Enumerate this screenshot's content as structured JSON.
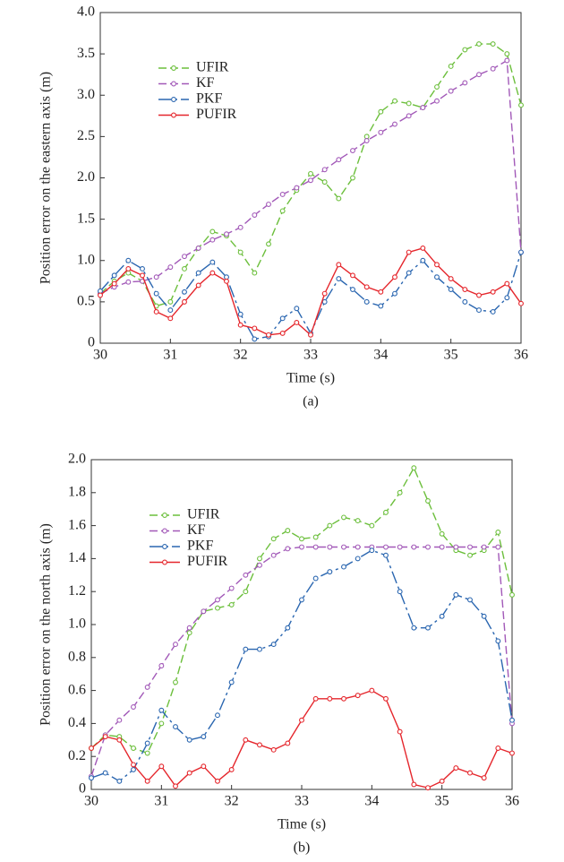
{
  "chart_data": [
    {
      "type": "line",
      "caption": "(a)",
      "xlabel": "Time (s)",
      "ylabel": "Position error on the eastern axis (m)",
      "x": [
        30,
        30.2,
        30.4,
        30.6,
        30.8,
        31,
        31.2,
        31.4,
        31.6,
        31.8,
        32,
        32.2,
        32.4,
        32.6,
        32.8,
        33,
        33.2,
        33.4,
        33.6,
        33.8,
        34,
        34.2,
        34.4,
        34.6,
        34.8,
        35,
        35.2,
        35.4,
        35.6,
        35.8,
        36
      ],
      "xlim": [
        30,
        36
      ],
      "xticks": [
        30,
        31,
        32,
        33,
        34,
        35,
        36
      ],
      "ylim": [
        0,
        4
      ],
      "yticks": [
        0,
        0.5,
        {
          "value": 1,
          "label": "1.0"
        },
        1.5,
        {
          "value": 2,
          "label": "2.0"
        },
        2.5,
        {
          "value": 3,
          "label": "3.0"
        },
        3.5,
        {
          "value": 4,
          "label": "4.0"
        }
      ],
      "legend": "upper left",
      "series": [
        {
          "name": "UFIR",
          "color": "#6cbf3c",
          "dash": "dashed",
          "values": [
            0.6,
            0.75,
            0.85,
            0.75,
            0.45,
            0.5,
            0.9,
            1.15,
            1.35,
            1.3,
            1.1,
            0.85,
            1.2,
            1.6,
            1.85,
            2.05,
            1.95,
            1.75,
            2.0,
            2.5,
            2.8,
            2.93,
            2.9,
            2.85,
            3.1,
            3.35,
            3.55,
            3.62,
            3.62,
            3.5,
            2.88
          ]
        },
        {
          "name": "KF",
          "color": "#a259b8",
          "dash": "dashed",
          "values": [
            0.6,
            0.68,
            0.74,
            0.75,
            0.8,
            0.92,
            1.05,
            1.15,
            1.25,
            1.32,
            1.4,
            1.55,
            1.68,
            1.8,
            1.88,
            1.97,
            2.1,
            2.22,
            2.33,
            2.45,
            2.55,
            2.65,
            2.75,
            2.85,
            2.93,
            3.05,
            3.15,
            3.25,
            3.32,
            3.42,
            1.1
          ]
        },
        {
          "name": "PKF",
          "color": "#2a66b0",
          "dash": "dashdot",
          "values": [
            0.63,
            0.82,
            1.0,
            0.9,
            0.6,
            0.4,
            0.62,
            0.85,
            0.98,
            0.8,
            0.35,
            0.05,
            0.08,
            0.3,
            0.42,
            0.12,
            0.5,
            0.78,
            0.65,
            0.5,
            0.45,
            0.6,
            0.85,
            1.0,
            0.8,
            0.65,
            0.5,
            0.4,
            0.38,
            0.55,
            1.1
          ]
        },
        {
          "name": "PUFIR",
          "color": "#e5262c",
          "dash": "solid",
          "values": [
            0.58,
            0.72,
            0.9,
            0.82,
            0.38,
            0.3,
            0.5,
            0.7,
            0.85,
            0.75,
            0.22,
            0.18,
            0.1,
            0.12,
            0.25,
            0.1,
            0.6,
            0.95,
            0.82,
            0.68,
            0.62,
            0.8,
            1.1,
            1.15,
            0.95,
            0.78,
            0.65,
            0.58,
            0.62,
            0.72,
            0.48
          ]
        }
      ]
    },
    {
      "type": "line",
      "caption": "(b)",
      "xlabel": "Time (s)",
      "ylabel": "Position error on the north axis (m)",
      "x": [
        30,
        30.2,
        30.4,
        30.6,
        30.8,
        31,
        31.2,
        31.4,
        31.6,
        31.8,
        32,
        32.2,
        32.4,
        32.6,
        32.8,
        33,
        33.2,
        33.4,
        33.6,
        33.8,
        34,
        34.2,
        34.4,
        34.6,
        34.8,
        35,
        35.2,
        35.4,
        35.6,
        35.8,
        36
      ],
      "xlim": [
        30,
        36
      ],
      "xticks": [
        30,
        31,
        32,
        33,
        34,
        35,
        36
      ],
      "ylim": [
        0,
        2
      ],
      "yticks": [
        0,
        0.2,
        0.4,
        0.6,
        0.8,
        {
          "value": 1,
          "label": "1.0"
        },
        1.2,
        1.4,
        1.6,
        1.8,
        {
          "value": 2,
          "label": "2.0"
        }
      ],
      "legend": "upper left",
      "series": [
        {
          "name": "UFIR",
          "color": "#6cbf3c",
          "dash": "dashed",
          "values": [
            0.25,
            0.33,
            0.32,
            0.25,
            0.22,
            0.4,
            0.65,
            0.95,
            1.08,
            1.1,
            1.12,
            1.2,
            1.4,
            1.52,
            1.57,
            1.52,
            1.53,
            1.6,
            1.65,
            1.63,
            1.6,
            1.68,
            1.8,
            1.95,
            1.75,
            1.55,
            1.45,
            1.42,
            1.45,
            1.56,
            1.18
          ]
        },
        {
          "name": "KF",
          "color": "#a259b8",
          "dash": "dashed",
          "values": [
            0.08,
            0.33,
            0.42,
            0.5,
            0.62,
            0.75,
            0.88,
            0.98,
            1.08,
            1.15,
            1.22,
            1.3,
            1.36,
            1.42,
            1.46,
            1.47,
            1.47,
            1.47,
            1.47,
            1.47,
            1.47,
            1.47,
            1.47,
            1.47,
            1.47,
            1.47,
            1.47,
            1.47,
            1.47,
            1.47,
            0.4
          ]
        },
        {
          "name": "PKF",
          "color": "#2a66b0",
          "dash": "dashdot",
          "values": [
            0.07,
            0.1,
            0.05,
            0.12,
            0.28,
            0.48,
            0.38,
            0.3,
            0.32,
            0.45,
            0.65,
            0.85,
            0.85,
            0.88,
            0.98,
            1.15,
            1.28,
            1.32,
            1.35,
            1.4,
            1.45,
            1.42,
            1.2,
            0.98,
            0.98,
            1.05,
            1.18,
            1.15,
            1.05,
            0.9,
            0.42
          ]
        },
        {
          "name": "PUFIR",
          "color": "#e5262c",
          "dash": "solid",
          "values": [
            0.25,
            0.32,
            0.3,
            0.15,
            0.05,
            0.14,
            0.02,
            0.1,
            0.14,
            0.05,
            0.12,
            0.3,
            0.27,
            0.24,
            0.28,
            0.42,
            0.55,
            0.55,
            0.55,
            0.57,
            0.6,
            0.55,
            0.35,
            0.03,
            0.01,
            0.05,
            0.13,
            0.1,
            0.07,
            0.25,
            0.22
          ]
        }
      ]
    }
  ]
}
